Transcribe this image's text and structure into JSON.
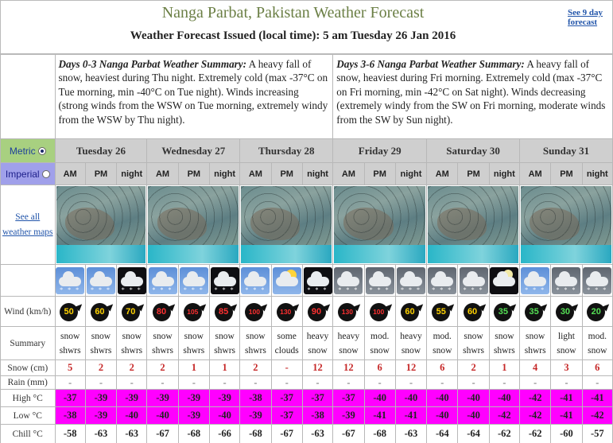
{
  "header": {
    "title": "Nanga Parbat, Pakistan Weather Forecast",
    "issued": "Weather Forecast Issued (local time): 5 am Tuesday 26 Jan 2016",
    "nine_day_link": "See 9 day forecast"
  },
  "summaries": [
    {
      "title": "Days 0-3 Nanga Parbat Weather Summary:",
      "text": " A heavy fall of snow, heaviest during Thu night. Extremely cold (max -37°C on Tue morning, min -40°C on Tue night). Winds increasing (strong winds from the WSW on Tue morning, extremely windy from the WSW by Thu night)."
    },
    {
      "title": "Days 3-6 Nanga Parbat Weather Summary:",
      "text": " A heavy fall of snow, heaviest during Fri morning. Extremely cold (max -37°C on Fri morning, min -42°C on Sat night). Winds decreasing (extremely windy from the SW on Fri morning, moderate winds from the SW by Sun night)."
    }
  ],
  "units": {
    "metric": "Metric",
    "imperial": "Imperial",
    "selected": "metric"
  },
  "days": [
    "Tuesday 26",
    "Wednesday 27",
    "Thursday 28",
    "Friday 29",
    "Saturday 30",
    "Sunday 31"
  ],
  "periods": [
    "AM",
    "PM",
    "night"
  ],
  "row_labels": {
    "maps": "See all weather maps",
    "wind": "Wind (km/h)",
    "summary": "Summary",
    "snow": "Snow (cm)",
    "rain": "Rain (mm)",
    "high": "High °C",
    "low": "Low °C",
    "chill": "Chill °C"
  },
  "forecast": {
    "icons": [
      "day-snow",
      "day-snow",
      "night-snow",
      "day-snow",
      "day-snow",
      "night-snow",
      "day-snow",
      "day-sun-cloud",
      "night-heavy-snow",
      "grey-heavy-snow",
      "grey-heavy-snow",
      "grey-heavy-snow",
      "grey-heavy-snow",
      "grey-heavy-snow",
      "night-moon-cloud",
      "day-snow",
      "grey-snow",
      "grey-snow"
    ],
    "wind": [
      "50",
      "60",
      "70",
      "80",
      "105",
      "85",
      "100",
      "130",
      "90",
      "130",
      "100",
      "60",
      "55",
      "60",
      "35",
      "35",
      "30",
      "20"
    ],
    "summary": [
      "snow shwrs",
      "snow shwrs",
      "snow shwrs",
      "snow shwrs",
      "snow shwrs",
      "snow shwrs",
      "snow shwrs",
      "some clouds",
      "heavy snow",
      "heavy snow",
      "mod. snow",
      "heavy snow",
      "mod. snow",
      "snow shwrs",
      "snow shwrs",
      "snow shwrs",
      "light snow",
      "mod. snow"
    ],
    "snow": [
      "5",
      "2",
      "2",
      "2",
      "1",
      "1",
      "2",
      "-",
      "12",
      "12",
      "6",
      "12",
      "6",
      "2",
      "1",
      "4",
      "3",
      "6"
    ],
    "rain": [
      "-",
      "-",
      "-",
      "-",
      "-",
      "-",
      "-",
      "-",
      "-",
      "-",
      "-",
      "-",
      "-",
      "-",
      "-",
      "-",
      "-",
      "-"
    ],
    "high": [
      "-37",
      "-39",
      "-39",
      "-39",
      "-39",
      "-39",
      "-38",
      "-37",
      "-37",
      "-37",
      "-40",
      "-40",
      "-40",
      "-40",
      "-40",
      "-42",
      "-41",
      "-41"
    ],
    "low": [
      "-38",
      "-39",
      "-40",
      "-40",
      "-39",
      "-40",
      "-39",
      "-37",
      "-38",
      "-39",
      "-41",
      "-41",
      "-40",
      "-40",
      "-42",
      "-42",
      "-41",
      "-42"
    ],
    "chill": [
      "-58",
      "-63",
      "-63",
      "-67",
      "-68",
      "-66",
      "-68",
      "-67",
      "-63",
      "-67",
      "-68",
      "-63",
      "-64",
      "-64",
      "-62",
      "-62",
      "-60",
      "-57"
    ]
  }
}
